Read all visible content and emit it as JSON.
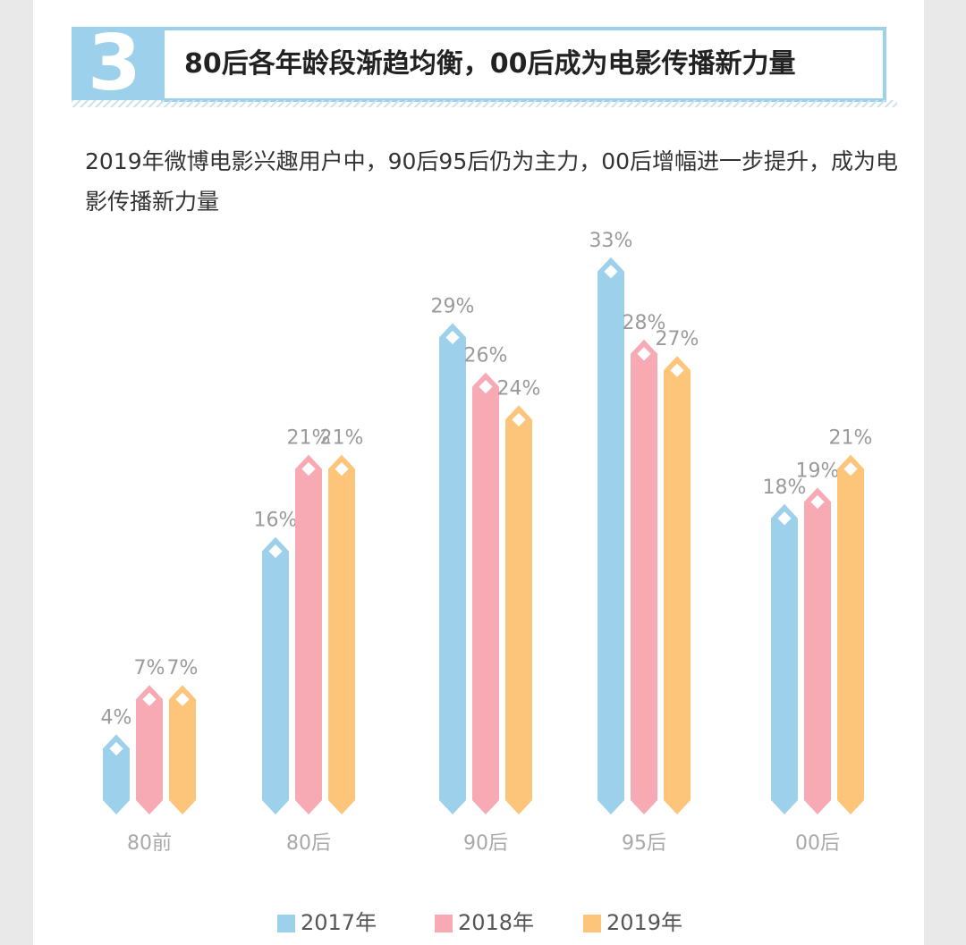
{
  "header": {
    "number": "3",
    "title": "80后各年龄段渐趋均衡，00后成为电影传播新力量"
  },
  "subtitle": "2019年微博电影兴趣用户中，90后95后仍为主力，00后增幅进一步提升，成为电影传播新力量",
  "chart_data": {
    "type": "bar",
    "title": "",
    "xlabel": "",
    "ylabel": "",
    "ylim": [
      0,
      35
    ],
    "grid": false,
    "legend_position": "bottom-center",
    "categories": [
      "80前",
      "80后",
      "90后",
      "95后",
      "00后"
    ],
    "series": [
      {
        "name": "2017年",
        "color": "#9dd0ea",
        "values": [
          4,
          16,
          29,
          33,
          18
        ],
        "labels": [
          "4%",
          "16%",
          "29%",
          "33%",
          "18%"
        ]
      },
      {
        "name": "2018年",
        "color": "#f7aab3",
        "values": [
          7,
          21,
          26,
          28,
          19
        ],
        "labels": [
          "7%",
          "21%",
          "26%",
          "28%",
          "19%"
        ]
      },
      {
        "name": "2019年",
        "color": "#fdc57a",
        "values": [
          7,
          21,
          24,
          27,
          21
        ],
        "labels": [
          "7%",
          "21%",
          "24%",
          "27%",
          "21%"
        ]
      }
    ]
  }
}
